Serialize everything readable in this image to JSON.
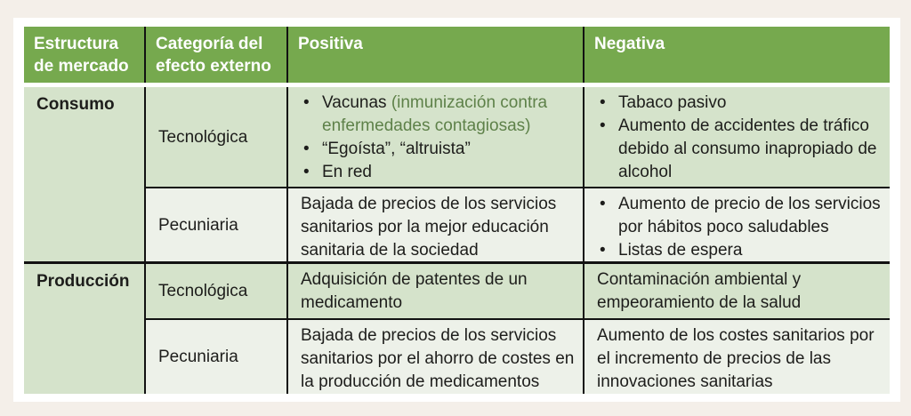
{
  "colors": {
    "page_bg": "#f4efe9",
    "frame_bg": "#ffffff",
    "header_bg": "#76a94e",
    "header_text": "#ffffff",
    "row_green_bg": "#d5e3cb",
    "row_light_bg": "#edf1e9",
    "accent_text": "#5e8149",
    "body_text": "#1d1d1b",
    "line_color": "#121212"
  },
  "table": {
    "headers": [
      "Estructura de mercado",
      "Categoría del efecto externo",
      "Positiva",
      "Negativa"
    ],
    "market_groups": [
      {
        "market": "Consumo",
        "rows": [
          {
            "category": "Tecnológica",
            "positiva": {
              "bullets": [
                {
                  "text": "Vacunas ",
                  "accent": "(inmunización contra enfermedades contagiosas)"
                },
                {
                  "text": "“Egoísta”, “altruista”"
                },
                {
                  "text": "En red"
                }
              ]
            },
            "negativa": {
              "bullets": [
                {
                  "text": "Tabaco pasivo"
                },
                {
                  "text": "Aumento de accidentes de tráfico debido al consumo inapropiado de alcohol"
                }
              ]
            }
          },
          {
            "category": "Pecuniaria",
            "positiva": {
              "text": "Bajada de precios de los servicios sanitarios por la mejor educación sanitaria de la sociedad"
            },
            "negativa": {
              "bullets": [
                {
                  "text": "Aumento de precio de los servicios por hábitos poco saludables"
                },
                {
                  "text": "Listas de espera"
                }
              ]
            }
          }
        ]
      },
      {
        "market": "Producción",
        "rows": [
          {
            "category": "Tecnológica",
            "positiva": {
              "text": "Adquisición de patentes de un medicamento"
            },
            "negativa": {
              "text": "Contaminación ambiental y empeoramiento de la salud"
            }
          },
          {
            "category": "Pecuniaria",
            "positiva": {
              "text": "Bajada de precios de los servicios sanitarios por el ahorro de costes en la producción de medicamentos"
            },
            "negativa": {
              "text": "Aumento de los costes sanitarios por el incremento de precios de las innovaciones sanitarias"
            }
          }
        ]
      }
    ]
  }
}
